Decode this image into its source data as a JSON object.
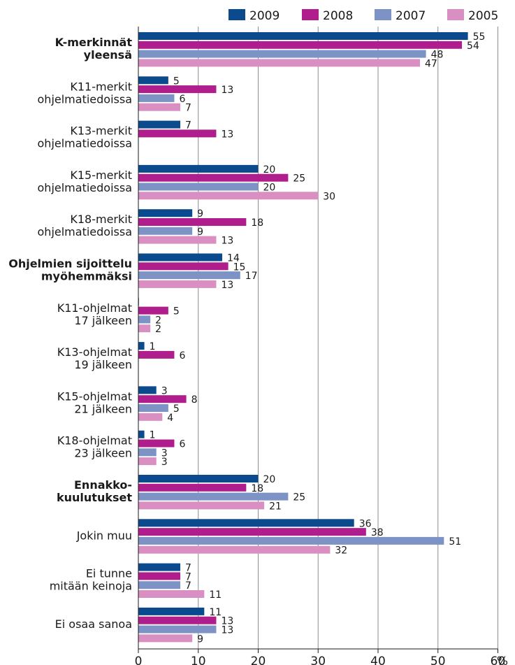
{
  "chart_data": {
    "type": "bar",
    "orientation": "horizontal",
    "x_unit": "%",
    "xlim": [
      0,
      60
    ],
    "x_ticks": [
      "0",
      "10",
      "20",
      "30",
      "40",
      "50",
      "60"
    ],
    "grid": true,
    "legend_position": "top-right",
    "categories": [
      {
        "line1": "K-merkinnät",
        "line2": "yleensä",
        "bold": true
      },
      {
        "line1": "K11-merkit",
        "line2": "ohjelmatiedoissa",
        "bold": false
      },
      {
        "line1": "K13-merkit",
        "line2": "ohjelmatiedoissa",
        "bold": false
      },
      {
        "line1": "K15-merkit",
        "line2": "ohjelmatiedoissa",
        "bold": false
      },
      {
        "line1": "K18-merkit",
        "line2": "ohjelmatiedoissa",
        "bold": false
      },
      {
        "line1": "Ohjelmien sijoittelu",
        "line2": "myöhemmäksi",
        "bold": true
      },
      {
        "line1": "K11-ohjelmat",
        "line2": "17 jälkeen",
        "bold": false
      },
      {
        "line1": "K13-ohjelmat",
        "line2": "19 jälkeen",
        "bold": false
      },
      {
        "line1": "K15-ohjelmat",
        "line2": "21 jälkeen",
        "bold": false
      },
      {
        "line1": "K18-ohjelmat",
        "line2": "23 jälkeen",
        "bold": false
      },
      {
        "line1": "Ennakko-",
        "line2": "kuulutukset",
        "bold": true
      },
      {
        "line1": "Jokin muu",
        "line2": "",
        "bold": false
      },
      {
        "line1": "Ei tunne",
        "line2": "mitään keinoja",
        "bold": false
      },
      {
        "line1": "Ei osaa sanoa",
        "line2": "",
        "bold": false
      }
    ],
    "series": [
      {
        "name": "2009",
        "color": "#0b4a8c",
        "values": [
          55,
          5,
          7,
          20,
          9,
          14,
          0,
          1,
          3,
          1,
          20,
          36,
          7,
          11
        ],
        "labels": [
          "55",
          "5",
          "7",
          "20",
          "9",
          "14",
          "",
          "1",
          "3",
          "1",
          "20",
          "36",
          "7",
          "11"
        ]
      },
      {
        "name": "2008",
        "color": "#b01e8d",
        "values": [
          54,
          13,
          13,
          25,
          18,
          15,
          5,
          6,
          8,
          6,
          18,
          38,
          7,
          13
        ],
        "labels": [
          "54",
          "13",
          "13",
          "25",
          "18",
          "15",
          "5",
          "6",
          "8",
          "6",
          "18",
          "38",
          "7",
          "13"
        ]
      },
      {
        "name": "2007",
        "color": "#7d93c6",
        "values": [
          48,
          6,
          null,
          20,
          9,
          17,
          2,
          null,
          5,
          3,
          25,
          51,
          7,
          13
        ],
        "labels": [
          "48",
          "6",
          "",
          "20",
          "9",
          "17",
          "2",
          "",
          "5",
          "3",
          "25",
          "51",
          "7",
          "13"
        ]
      },
      {
        "name": "2005",
        "color": "#d98fc2",
        "values": [
          47,
          7,
          null,
          30,
          13,
          13,
          2,
          null,
          4,
          3,
          21,
          32,
          11,
          9
        ],
        "labels": [
          "47",
          "7",
          "",
          "30",
          "13",
          "13",
          "2",
          "",
          "4",
          "3",
          "21",
          "32",
          "11",
          "9"
        ]
      }
    ]
  }
}
